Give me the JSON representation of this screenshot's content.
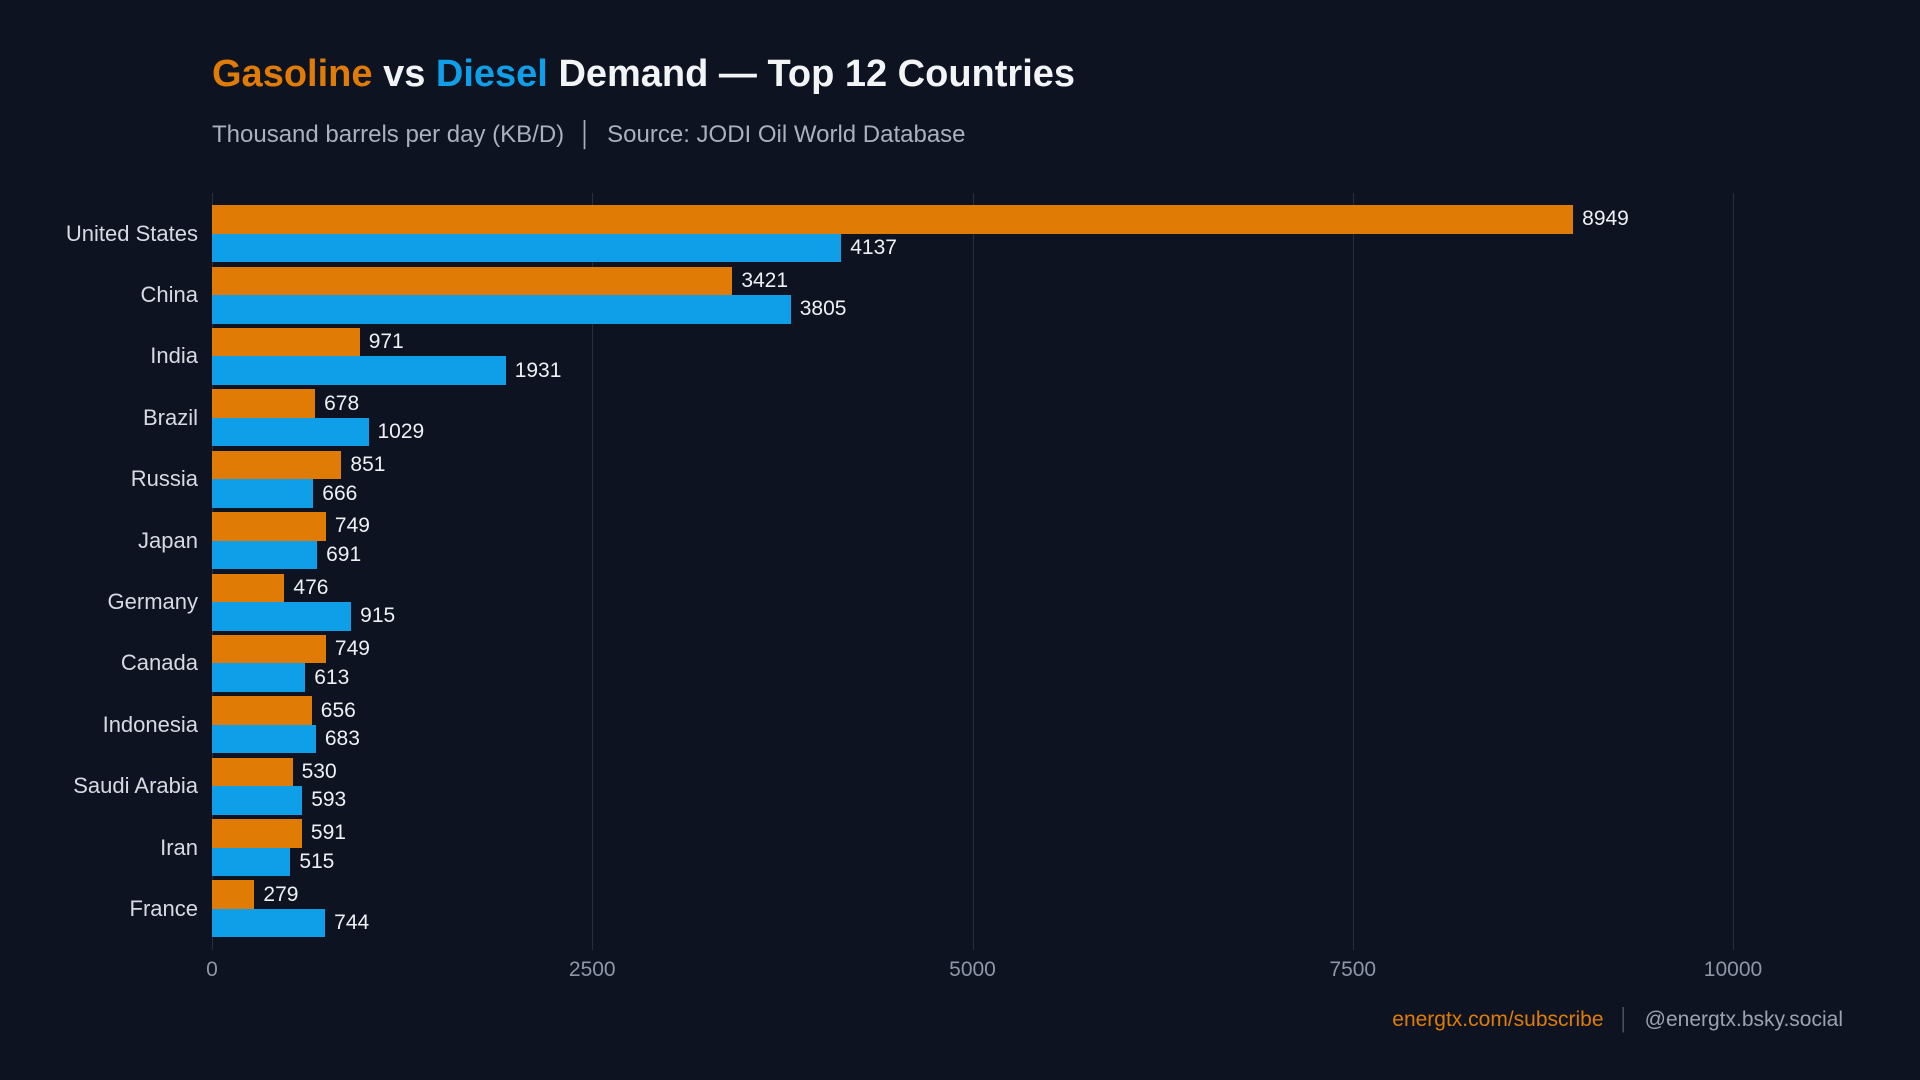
{
  "title": {
    "part1": "Gasoline",
    "part2": "vs",
    "part3": "Diesel",
    "part4": "Demand — Top 12 Countries"
  },
  "subtitle": {
    "left": "Thousand barrels per day (KB/D)",
    "separator": "│",
    "right": "Source: JODI Oil World Database"
  },
  "footer": {
    "link": "energtx.com/subscribe",
    "separator": "│",
    "handle": "@energtx.bsky.social"
  },
  "colors": {
    "background": "#0d1321",
    "gasoline": "#e07c06",
    "diesel": "#0f9fe8",
    "grid": "#272e3c",
    "title_text": "#f2f4f6",
    "subtitle_text": "#a8b1bc",
    "country_label": "#d6dbe3",
    "value_label": "#eef0f3",
    "tick_label": "#8d97a6",
    "footer_link": "#e07c06",
    "footer_handle": "#9aa3ae",
    "separator": "#4d5663"
  },
  "chart_data": {
    "type": "bar",
    "orientation": "horizontal",
    "title": "Gasoline vs Diesel Demand — Top 12 Countries",
    "subtitle": "Thousand barrels per day (KB/D) | Source: JODI Oil World Database",
    "xlabel": "",
    "ylabel": "",
    "xlim": [
      0,
      10000
    ],
    "xticks": [
      0,
      2500,
      5000,
      7500,
      10000
    ],
    "grid": "vertical",
    "legend": "none (color-coded title)",
    "value_labels": true,
    "categories": [
      "United States",
      "China",
      "India",
      "Brazil",
      "Russia",
      "Japan",
      "Germany",
      "Canada",
      "Indonesia",
      "Saudi Arabia",
      "Iran",
      "France"
    ],
    "series": [
      {
        "name": "Gasoline",
        "color": "#e07c06",
        "values": [
          8949,
          3421,
          971,
          678,
          851,
          749,
          476,
          749,
          656,
          530,
          591,
          279
        ]
      },
      {
        "name": "Diesel",
        "color": "#0f9fe8",
        "values": [
          4137,
          3805,
          1931,
          1029,
          666,
          691,
          915,
          613,
          683,
          593,
          515,
          744
        ]
      }
    ]
  }
}
